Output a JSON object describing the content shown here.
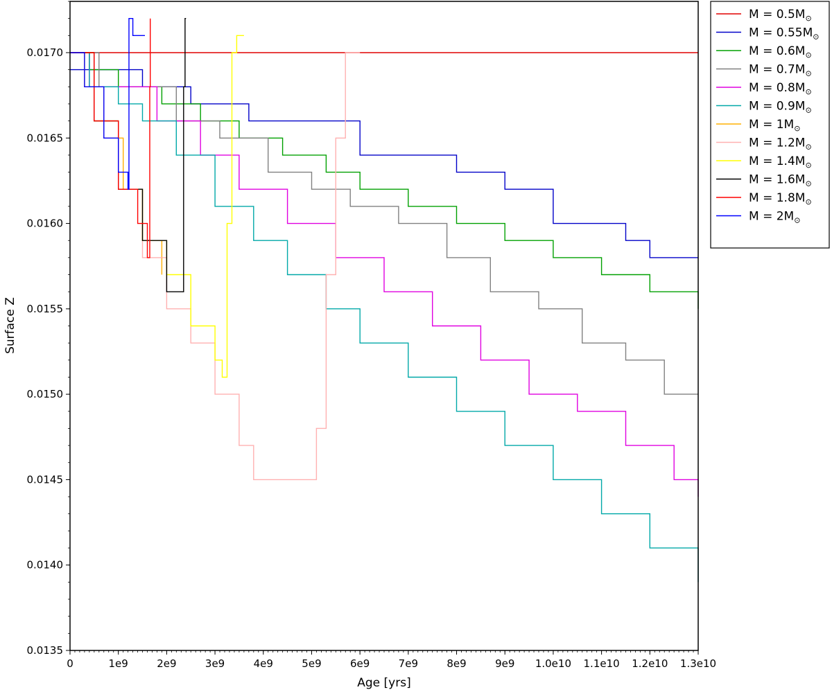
{
  "chart_data": {
    "type": "line",
    "title": "",
    "xlabel": "Age  [yrs]",
    "ylabel": "Surface  Z",
    "xlim": [
      0,
      13000000000
    ],
    "ylim": [
      0.0135,
      0.0173
    ],
    "x_ticks": [
      {
        "value": 0,
        "label": "0"
      },
      {
        "value": 1000000000,
        "label": "1e9"
      },
      {
        "value": 2000000000,
        "label": "2e9"
      },
      {
        "value": 3000000000,
        "label": "3e9"
      },
      {
        "value": 4000000000,
        "label": "4e9"
      },
      {
        "value": 5000000000,
        "label": "5e9"
      },
      {
        "value": 6000000000,
        "label": "6e9"
      },
      {
        "value": 7000000000,
        "label": "7e9"
      },
      {
        "value": 8000000000,
        "label": "8e9"
      },
      {
        "value": 9000000000,
        "label": "9e9"
      },
      {
        "value": 10000000000,
        "label": "1.0e10"
      },
      {
        "value": 11000000000,
        "label": "1.1e10"
      },
      {
        "value": 12000000000,
        "label": "1.2e10"
      },
      {
        "value": 13000000000,
        "label": "1.3e10"
      }
    ],
    "y_ticks": [
      {
        "value": 0.0135,
        "label": "0.0135"
      },
      {
        "value": 0.014,
        "label": "0.0140"
      },
      {
        "value": 0.0145,
        "label": "0.0145"
      },
      {
        "value": 0.015,
        "label": "0.0150"
      },
      {
        "value": 0.0155,
        "label": "0.0155"
      },
      {
        "value": 0.016,
        "label": "0.0160"
      },
      {
        "value": 0.0165,
        "label": "0.0165"
      },
      {
        "value": 0.017,
        "label": "0.0170"
      }
    ],
    "grid": false,
    "legend_position": "outside-top-right",
    "series": [
      {
        "name": "M = 0.5M",
        "color": "#e00000",
        "x": [
          0,
          13000000000
        ],
        "y": [
          0.017,
          0.017
        ]
      },
      {
        "name": "M = 0.55M",
        "color": "#0000c8",
        "x": [
          0,
          200000000,
          1500000000,
          2500000000,
          3700000000,
          4500000000,
          6000000000,
          6900000000,
          8000000000,
          9000000000,
          10000000000,
          10700000000,
          11500000000,
          12000000000,
          13000000000
        ],
        "y": [
          0.0169,
          0.0169,
          0.0168,
          0.0167,
          0.0166,
          0.0166,
          0.0164,
          0.0164,
          0.0163,
          0.0162,
          0.016,
          0.016,
          0.0159,
          0.0158,
          0.0158
        ]
      },
      {
        "name": "M = 0.6M",
        "color": "#00a000",
        "x": [
          0,
          400000000,
          1000000000,
          1900000000,
          2700000000,
          3500000000,
          4400000000,
          5300000000,
          6000000000,
          7000000000,
          8000000000,
          9000000000,
          10000000000,
          11000000000,
          12000000000,
          13000000000
        ],
        "y": [
          0.017,
          0.0169,
          0.0168,
          0.0167,
          0.0166,
          0.0165,
          0.0164,
          0.0163,
          0.0162,
          0.0161,
          0.016,
          0.0159,
          0.0158,
          0.0157,
          0.0156,
          0.0155
        ]
      },
      {
        "name": "M = 0.7M",
        "color": "#808080",
        "x": [
          0,
          600000000,
          1200000000,
          2200000000,
          3100000000,
          4100000000,
          5000000000,
          5800000000,
          6800000000,
          7800000000,
          8700000000,
          9700000000,
          10600000000,
          11500000000,
          12300000000,
          13000000000
        ],
        "y": [
          0.017,
          0.0168,
          0.0168,
          0.0166,
          0.0165,
          0.0163,
          0.0162,
          0.0161,
          0.016,
          0.0158,
          0.0156,
          0.0155,
          0.0153,
          0.0152,
          0.015,
          0.015
        ]
      },
      {
        "name": "M = 0.8M",
        "color": "#e000e0",
        "x": [
          0,
          400000000,
          1000000000,
          1800000000,
          2700000000,
          3500000000,
          4500000000,
          5500000000,
          6500000000,
          7500000000,
          8500000000,
          9500000000,
          10500000000,
          11500000000,
          12500000000,
          13000000000
        ],
        "y": [
          0.017,
          0.0168,
          0.0168,
          0.0166,
          0.0164,
          0.0162,
          0.016,
          0.0158,
          0.0156,
          0.0154,
          0.0152,
          0.015,
          0.0149,
          0.0147,
          0.0145,
          0.0144
        ]
      },
      {
        "name": "M = 0.9M",
        "color": "#00a8a8",
        "x": [
          0,
          400000000,
          1000000000,
          1500000000,
          2200000000,
          3000000000,
          3800000000,
          4500000000,
          5300000000,
          6000000000,
          7000000000,
          8000000000,
          9000000000,
          10000000000,
          11000000000,
          12000000000,
          13000000000
        ],
        "y": [
          0.017,
          0.0168,
          0.0167,
          0.0166,
          0.0164,
          0.0161,
          0.0159,
          0.0157,
          0.0155,
          0.0153,
          0.0151,
          0.0149,
          0.0147,
          0.0145,
          0.0143,
          0.0141,
          0.0139
        ]
      },
      {
        "name": "M = 1M",
        "color": "#ffb000",
        "x": [
          0,
          300000000,
          700000000,
          1100000000,
          1500000000,
          1900000000
        ],
        "y": [
          0.017,
          0.0168,
          0.0165,
          0.0162,
          0.0159,
          0.0157
        ]
      },
      {
        "name": "M = 1.2M",
        "color": "#ffb0b0",
        "x": [
          0,
          500000000,
          1000000000,
          1500000000,
          2000000000,
          2500000000,
          3000000000,
          3500000000,
          3800000000,
          5000000000,
          5100000000,
          5300000000,
          5500000000,
          5700000000,
          6000000000
        ],
        "y": [
          0.017,
          0.0166,
          0.0162,
          0.0158,
          0.0155,
          0.0153,
          0.015,
          0.0147,
          0.0145,
          0.0145,
          0.0148,
          0.0157,
          0.0165,
          0.017,
          0.017
        ]
      },
      {
        "name": "M = 1.4M",
        "color": "#ffff00",
        "x": [
          0,
          500000000,
          1000000000,
          1500000000,
          2000000000,
          2500000000,
          3000000000,
          3150000000,
          3250000000,
          3350000000,
          3450000000,
          3600000000
        ],
        "y": [
          0.017,
          0.0166,
          0.0162,
          0.0159,
          0.0157,
          0.0154,
          0.0152,
          0.0151,
          0.016,
          0.017,
          0.0171,
          0.0171
        ]
      },
      {
        "name": "M = 1.6M",
        "color": "#000000",
        "x": [
          0,
          500000000,
          1000000000,
          1500000000,
          2000000000,
          2300000000,
          2350000000,
          2380000000,
          2400000000
        ],
        "y": [
          0.017,
          0.0166,
          0.0162,
          0.0159,
          0.0156,
          0.0156,
          0.0168,
          0.0172,
          0.0172
        ]
      },
      {
        "name": "M = 1.8M",
        "color": "#ff0000",
        "x": [
          0,
          500000000,
          1000000000,
          1400000000,
          1600000000,
          1650000000,
          1660000000
        ],
        "y": [
          0.017,
          0.0166,
          0.0162,
          0.016,
          0.0158,
          0.0168,
          0.0172
        ]
      },
      {
        "name": "M = 2M",
        "color": "#0000ff",
        "x": [
          0,
          300000000,
          700000000,
          1000000000,
          1200000000,
          1220000000,
          1300000000,
          1550000000
        ],
        "y": [
          0.017,
          0.0168,
          0.0165,
          0.0163,
          0.0162,
          0.0172,
          0.0171,
          0.0171
        ]
      }
    ]
  }
}
